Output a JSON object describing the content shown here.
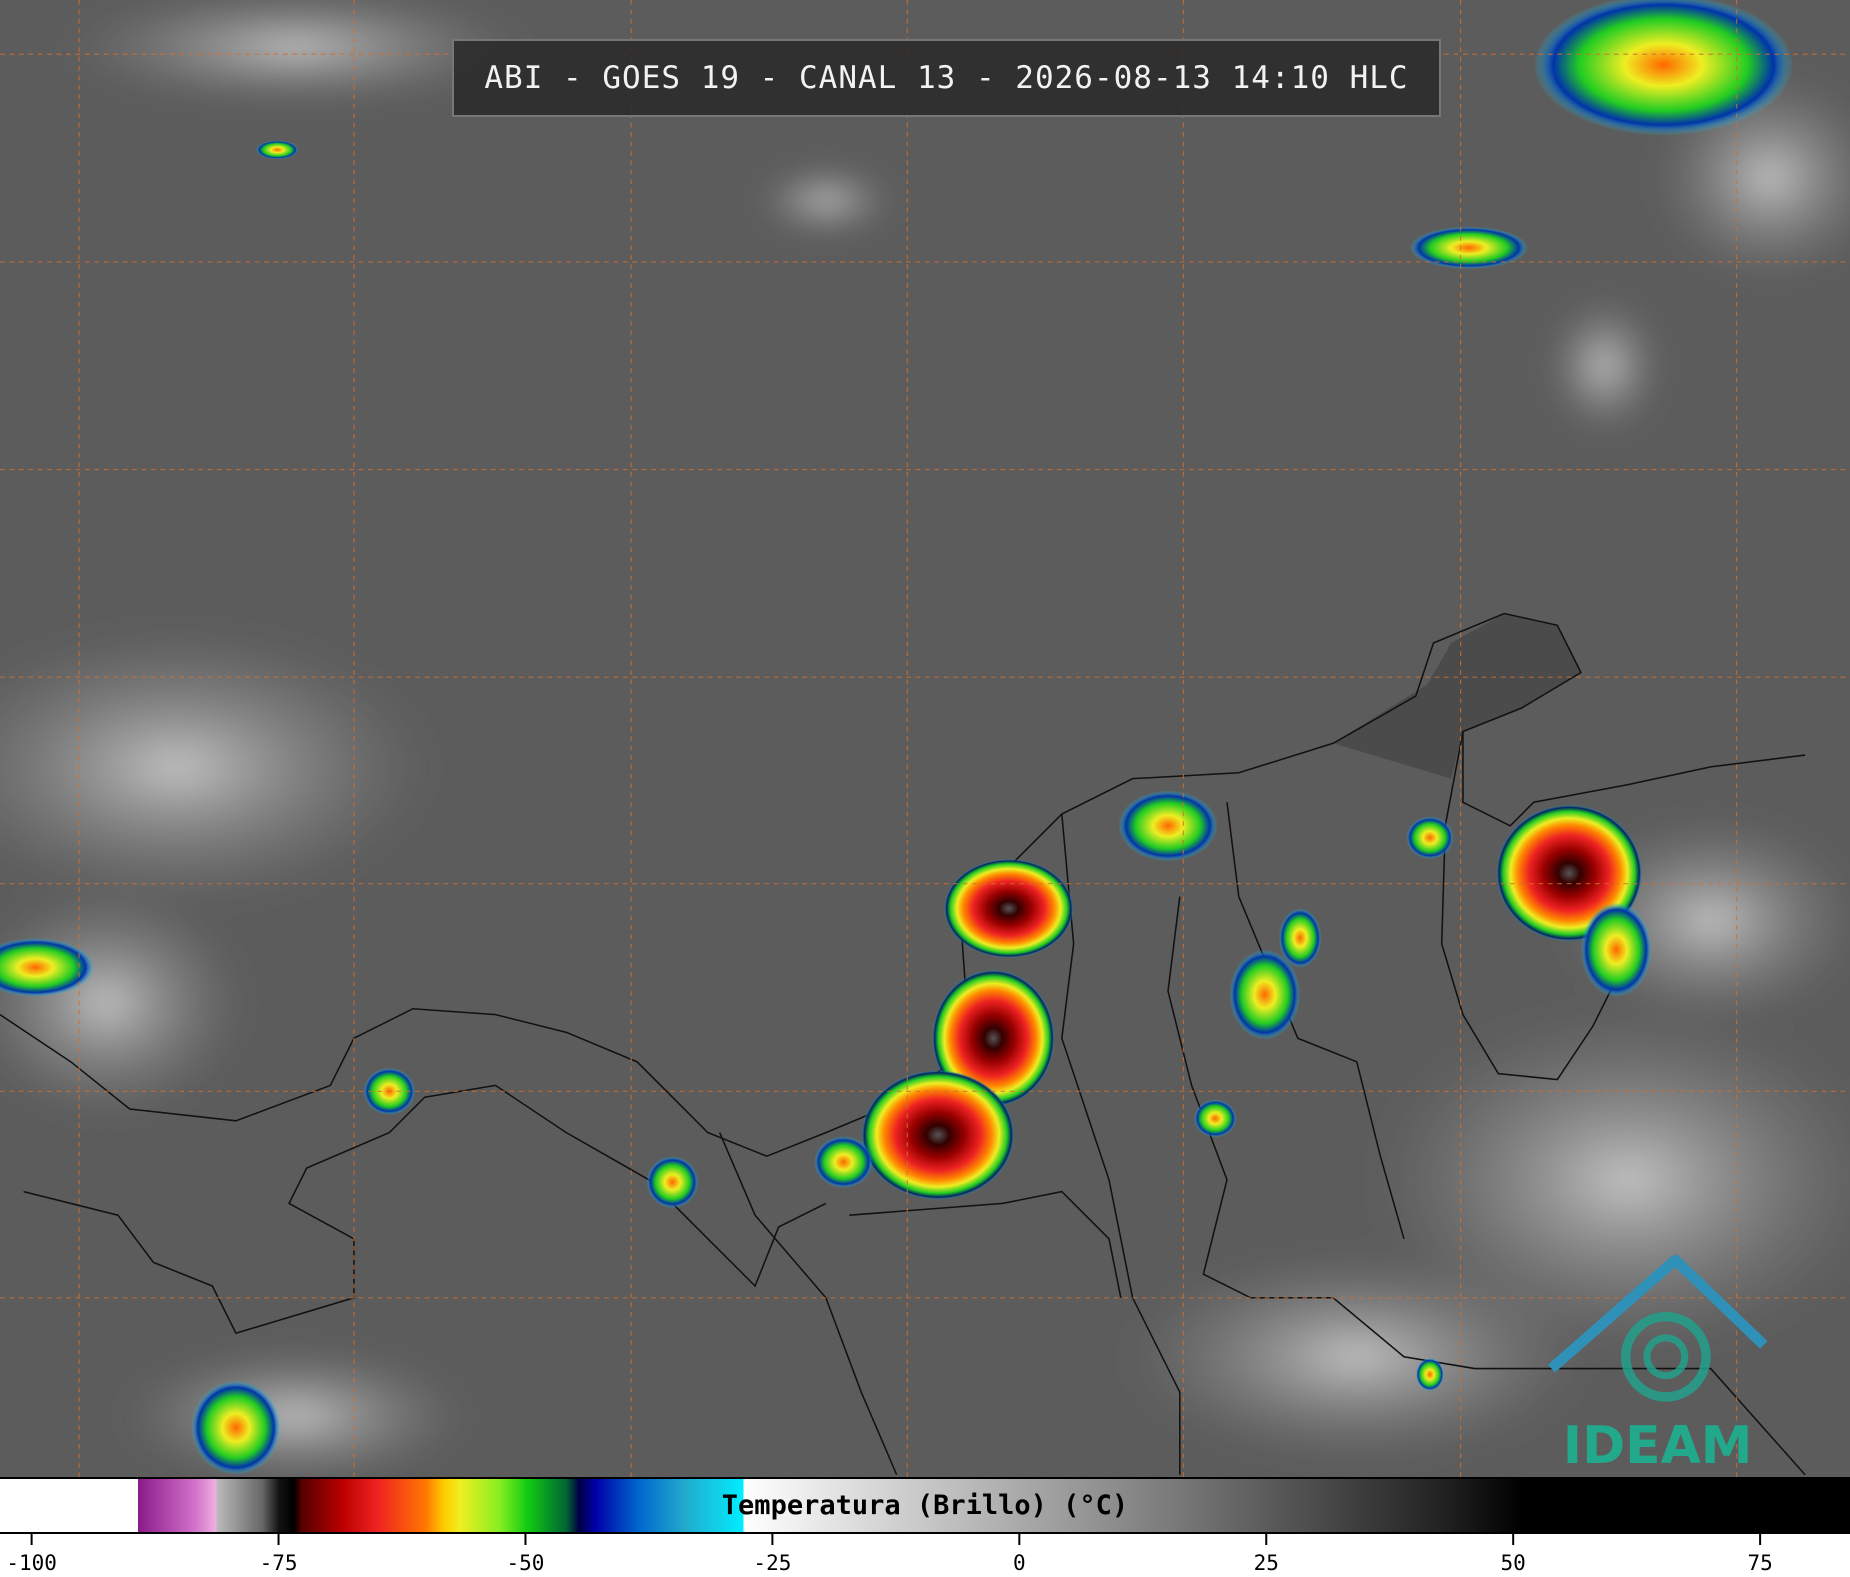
{
  "title": "ABI - GOES 19 - CANAL 13 - 2026-08-13 14:10 HLC",
  "colorbar": {
    "label": "Temperatura (Brillo) (°C)",
    "xlim": [
      -103.2,
      84.1
    ],
    "xticks": [
      -100,
      -75,
      -50,
      -25,
      0,
      25,
      50,
      75
    ]
  },
  "logo": "IDEAM"
}
